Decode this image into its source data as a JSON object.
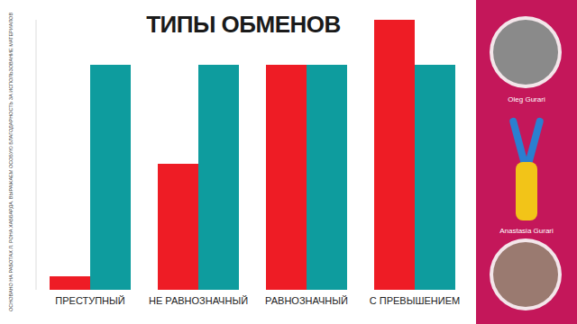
{
  "chart_data": {
    "type": "bar",
    "title": "ТИПЫ ОБМЕНОВ",
    "categories": [
      "ПРЕСТУПНЫЙ",
      "НЕ РАВНОЗНАЧНЫЙ",
      "РАВНОЗНАЧНЫЙ",
      "С ПРЕВЫШЕНИЕМ"
    ],
    "series": [
      {
        "color": "#ee1c25",
        "values": [
          6,
          56,
          100,
          120
        ]
      },
      {
        "color": "#0e9c9e",
        "values": [
          100,
          100,
          100,
          100
        ]
      }
    ],
    "ylim": [
      0,
      120
    ],
    "grid": false,
    "tick_labels": "x"
  },
  "side_note": "ОСНОВАНО НА РАБОТАХ Л. РОНА ХАББАРДА. ВЫРАЖАЕМ ОСОБУЮ БЛАГОДАРНОСТЬ ЗА ИСПОЛЬЗОВАНИЕ МАТЕРИАЛОВ",
  "presenters": [
    "Oleg Gurari",
    "Anastasia Gurari"
  ]
}
